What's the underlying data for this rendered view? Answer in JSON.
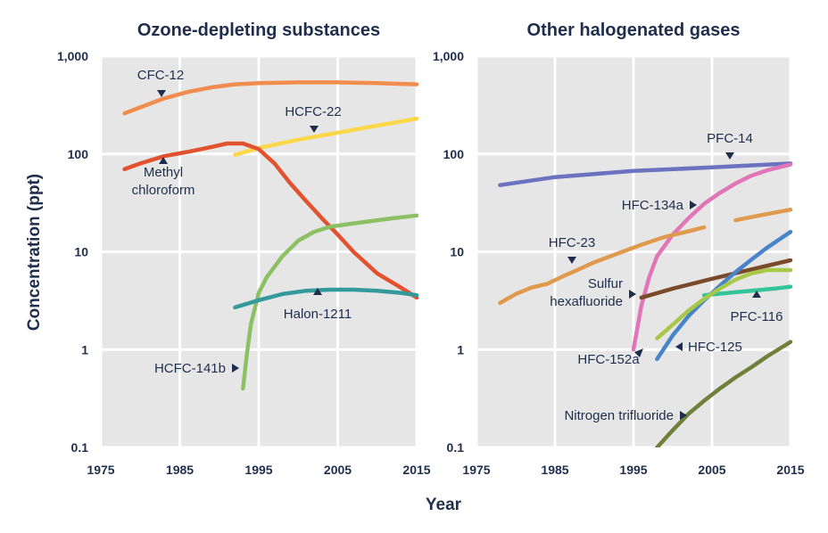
{
  "chart_data": {
    "type": "line",
    "xlabel": "Year",
    "ylabel": "Concentration (ppt)",
    "yscale": "log",
    "ylim": [
      0.1,
      1000
    ],
    "xlim": [
      1975,
      2015
    ],
    "grid": true,
    "x_ticks": [
      "1975",
      "1985",
      "1995",
      "2005",
      "2015"
    ],
    "y_ticks": [
      "0.1",
      "1",
      "10",
      "100",
      "1,000"
    ],
    "panels": [
      {
        "title": "Ozone-depleting substances",
        "series": [
          {
            "name": "CFC-12",
            "color": "#f08c4e",
            "points": [
              [
                1978,
                260
              ],
              [
                1980,
                300
              ],
              [
                1983,
                370
              ],
              [
                1986,
                430
              ],
              [
                1989,
                480
              ],
              [
                1992,
                515
              ],
              [
                1995,
                530
              ],
              [
                2000,
                540
              ],
              [
                2005,
                540
              ],
              [
                2010,
                530
              ],
              [
                2015,
                515
              ]
            ]
          },
          {
            "name": "HCFC-22",
            "color": "#fcd74a",
            "points": [
              [
                1992,
                98
              ],
              [
                1995,
                115
              ],
              [
                2000,
                140
              ],
              [
                2005,
                165
              ],
              [
                2010,
                195
              ],
              [
                2015,
                230
              ]
            ]
          },
          {
            "name": "Methyl chloroform",
            "color": "#e3522f",
            "points": [
              [
                1978,
                70
              ],
              [
                1980,
                80
              ],
              [
                1983,
                95
              ],
              [
                1986,
                105
              ],
              [
                1989,
                118
              ],
              [
                1991,
                128
              ],
              [
                1993,
                128
              ],
              [
                1995,
                112
              ],
              [
                1997,
                80
              ],
              [
                1999,
                50
              ],
              [
                2001,
                33
              ],
              [
                2003,
                22
              ],
              [
                2005,
                15
              ],
              [
                2007,
                10
              ],
              [
                2010,
                6
              ],
              [
                2013,
                4.3
              ],
              [
                2015,
                3.4
              ]
            ]
          },
          {
            "name": "HCFC-141b",
            "color": "#8cc063",
            "points": [
              [
                1993,
                0.4
              ],
              [
                1993.5,
                0.9
              ],
              [
                1994,
                1.8
              ],
              [
                1995,
                3.8
              ],
              [
                1996,
                5.5
              ],
              [
                1998,
                9
              ],
              [
                2000,
                13
              ],
              [
                2002,
                16
              ],
              [
                2004,
                18
              ],
              [
                2006,
                19
              ],
              [
                2008,
                20
              ],
              [
                2010,
                21
              ],
              [
                2012,
                22
              ],
              [
                2015,
                23.5
              ]
            ]
          },
          {
            "name": "Halon-1211",
            "color": "#33999b",
            "points": [
              [
                1992,
                2.7
              ],
              [
                1995,
                3.2
              ],
              [
                1998,
                3.7
              ],
              [
                2001,
                4.0
              ],
              [
                2004,
                4.1
              ],
              [
                2007,
                4.1
              ],
              [
                2010,
                4.0
              ],
              [
                2013,
                3.8
              ],
              [
                2015,
                3.6
              ]
            ]
          }
        ]
      },
      {
        "title": "Other halogenated gases",
        "series": [
          {
            "name": "PFC-14",
            "color": "#6b72bf",
            "points": [
              [
                1978,
                48
              ],
              [
                1985,
                58
              ],
              [
                1995,
                67
              ],
              [
                2005,
                73
              ],
              [
                2015,
                80
              ]
            ]
          },
          {
            "name": "HFC-134a",
            "color": "#e075b8",
            "points": [
              [
                1995,
                1
              ],
              [
                1996,
                2.8
              ],
              [
                1997,
                5.5
              ],
              [
                1998,
                9
              ],
              [
                2000,
                15
              ],
              [
                2002,
                22
              ],
              [
                2004,
                31
              ],
              [
                2006,
                40
              ],
              [
                2008,
                50
              ],
              [
                2010,
                60
              ],
              [
                2012,
                68
              ],
              [
                2015,
                78
              ]
            ]
          },
          {
            "name": "HFC-23",
            "color": "#e09a4e",
            "points": [
              [
                1978,
                3
              ],
              [
                1980,
                3.7
              ],
              [
                1982,
                4.3
              ],
              [
                1984,
                4.7
              ],
              [
                1986,
                5.6
              ],
              [
                1988,
                6.6
              ],
              [
                1990,
                7.8
              ],
              [
                1993,
                9.6
              ],
              [
                1996,
                11.8
              ],
              [
                1999,
                14.2
              ],
              [
                2002,
                16.2
              ],
              [
                2004,
                17.8
              ]
            ]
          },
          {
            "name": "HFC-23",
            "color": "#e09a4e",
            "points": [
              [
                2008,
                21
              ],
              [
                2011,
                23.5
              ],
              [
                2015,
                27
              ]
            ]
          },
          {
            "name": "Sulfur hexafluoride",
            "color": "#7a4a2a",
            "points": [
              [
                1996,
                3.4
              ],
              [
                2000,
                4.2
              ],
              [
                2005,
                5.3
              ],
              [
                2010,
                6.6
              ],
              [
                2015,
                8.2
              ]
            ]
          },
          {
            "name": "PFC-116",
            "color": "#34c49a",
            "points": [
              [
                2004,
                3.6
              ],
              [
                2007,
                3.8
              ],
              [
                2010,
                4.0
              ],
              [
                2013,
                4.2
              ],
              [
                2015,
                4.4
              ]
            ]
          },
          {
            "name": "HFC-125",
            "color": "#4a84c8",
            "points": [
              [
                1998,
                0.8
              ],
              [
                2000,
                1.4
              ],
              [
                2002,
                2.2
              ],
              [
                2004,
                3.2
              ],
              [
                2006,
                4.5
              ],
              [
                2008,
                6.2
              ],
              [
                2010,
                8.3
              ],
              [
                2012,
                11
              ],
              [
                2015,
                16
              ]
            ]
          },
          {
            "name": "HFC-152a",
            "color": "#a8c84a",
            "points": [
              [
                1998,
                1.3
              ],
              [
                2000,
                1.8
              ],
              [
                2002,
                2.5
              ],
              [
                2004,
                3.3
              ],
              [
                2006,
                4.2
              ],
              [
                2008,
                5.2
              ],
              [
                2010,
                6.0
              ],
              [
                2012,
                6.5
              ],
              [
                2015,
                6.5
              ]
            ]
          },
          {
            "name": "Nitrogen trifluoride",
            "color": "#6e803a",
            "points": [
              [
                1998,
                0.1
              ],
              [
                2000,
                0.15
              ],
              [
                2002,
                0.22
              ],
              [
                2004,
                0.3
              ],
              [
                2006,
                0.4
              ],
              [
                2008,
                0.52
              ],
              [
                2010,
                0.66
              ],
              [
                2012,
                0.85
              ],
              [
                2015,
                1.2
              ]
            ]
          }
        ]
      }
    ],
    "annotations": [
      {
        "panel": 0,
        "text": [
          "CFC-12"
        ],
        "arrow": "down"
      },
      {
        "panel": 0,
        "text": [
          "HCFC-22"
        ],
        "arrow": "down"
      },
      {
        "panel": 0,
        "text": [
          "Methyl",
          "chloroform"
        ],
        "arrow": "up"
      },
      {
        "panel": 0,
        "text": [
          "Halon-1211"
        ],
        "arrow": "up"
      },
      {
        "panel": 0,
        "text": [
          "HCFC-141b"
        ],
        "arrow": "right"
      },
      {
        "panel": 1,
        "text": [
          "PFC-14"
        ],
        "arrow": "down"
      },
      {
        "panel": 1,
        "text": [
          "HFC-134a"
        ],
        "arrow": "right"
      },
      {
        "panel": 1,
        "text": [
          "HFC-23"
        ],
        "arrow": "down"
      },
      {
        "panel": 1,
        "text": [
          "Sulfur",
          "hexafluoride"
        ],
        "arrow": "right"
      },
      {
        "panel": 1,
        "text": [
          "PFC-116"
        ],
        "arrow": "up"
      },
      {
        "panel": 1,
        "text": [
          "HFC-125"
        ],
        "arrow": "left"
      },
      {
        "panel": 1,
        "text": [
          "HFC-152a"
        ],
        "arrow": "up-right"
      },
      {
        "panel": 1,
        "text": [
          "Nitrogen trifluoride"
        ],
        "arrow": "right"
      }
    ]
  }
}
